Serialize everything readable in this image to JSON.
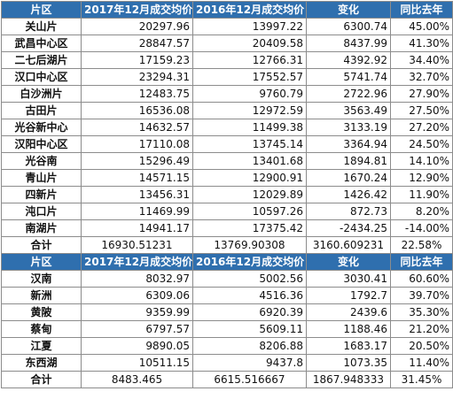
{
  "table1": {
    "headers": [
      "片区",
      "2017年12月成交均价",
      "2016年12月成交均价",
      "变化",
      "同比去年"
    ],
    "rows": [
      [
        "关山片",
        "20297.96",
        "13997.22",
        "6300.74",
        "45.00%"
      ],
      [
        "武昌中心区",
        "28847.57",
        "20409.58",
        "8437.99",
        "41.30%"
      ],
      [
        "二七后湖片",
        "17159.23",
        "12766.31",
        "4392.92",
        "34.40%"
      ],
      [
        "汉口中心区",
        "23294.31",
        "17552.57",
        "5741.74",
        "32.70%"
      ],
      [
        "白沙洲片",
        "12483.75",
        "9760.79",
        "2722.96",
        "27.90%"
      ],
      [
        "古田片",
        "16536.08",
        "12972.59",
        "3563.49",
        "27.50%"
      ],
      [
        "光谷新中心",
        "14632.57",
        "11499.38",
        "3133.19",
        "27.20%"
      ],
      [
        "汉阳中心区",
        "17110.08",
        "13745.14",
        "3364.94",
        "24.50%"
      ],
      [
        "光谷南",
        "15296.49",
        "13401.68",
        "1894.81",
        "14.10%"
      ],
      [
        "青山片",
        "14571.15",
        "12900.91",
        "1670.24",
        "12.90%"
      ],
      [
        "四新片",
        "13456.31",
        "12029.89",
        "1426.42",
        "11.90%"
      ],
      [
        "沌口片",
        "11469.99",
        "10597.26",
        "872.73",
        "8.20%"
      ],
      [
        "南湖片",
        "14941.17",
        "17375.42",
        "-2434.25",
        "-14.00%"
      ]
    ],
    "total": [
      "合计",
      "16930.51231",
      "13769.90308",
      "3160.609231",
      "22.58%"
    ]
  },
  "table2": {
    "headers": [
      "片区",
      "2017年12月成交均价",
      "2016年12月成交均价",
      "变化",
      "同比去年"
    ],
    "rows": [
      [
        "汉南",
        "8032.97",
        "5002.56",
        "3030.41",
        "60.60%"
      ],
      [
        "新洲",
        "6309.06",
        "4516.36",
        "1792.7",
        "39.70%"
      ],
      [
        "黄陂",
        "9359.99",
        "6920.39",
        "2439.6",
        "35.30%"
      ],
      [
        "蔡甸",
        "6797.57",
        "5609.11",
        "1188.46",
        "21.20%"
      ],
      [
        "江夏",
        "9890.05",
        "8206.88",
        "1683.17",
        "20.50%"
      ],
      [
        "东西湖",
        "10511.15",
        "9437.8",
        "1073.35",
        "11.40%"
      ]
    ],
    "total": [
      "合计",
      "8483.465",
      "6615.516667",
      "1867.948333",
      "31.45%"
    ]
  },
  "colors": {
    "header_bg": "#2f6fae",
    "header_text": "#ffffff",
    "border": "#8c8c8c"
  }
}
